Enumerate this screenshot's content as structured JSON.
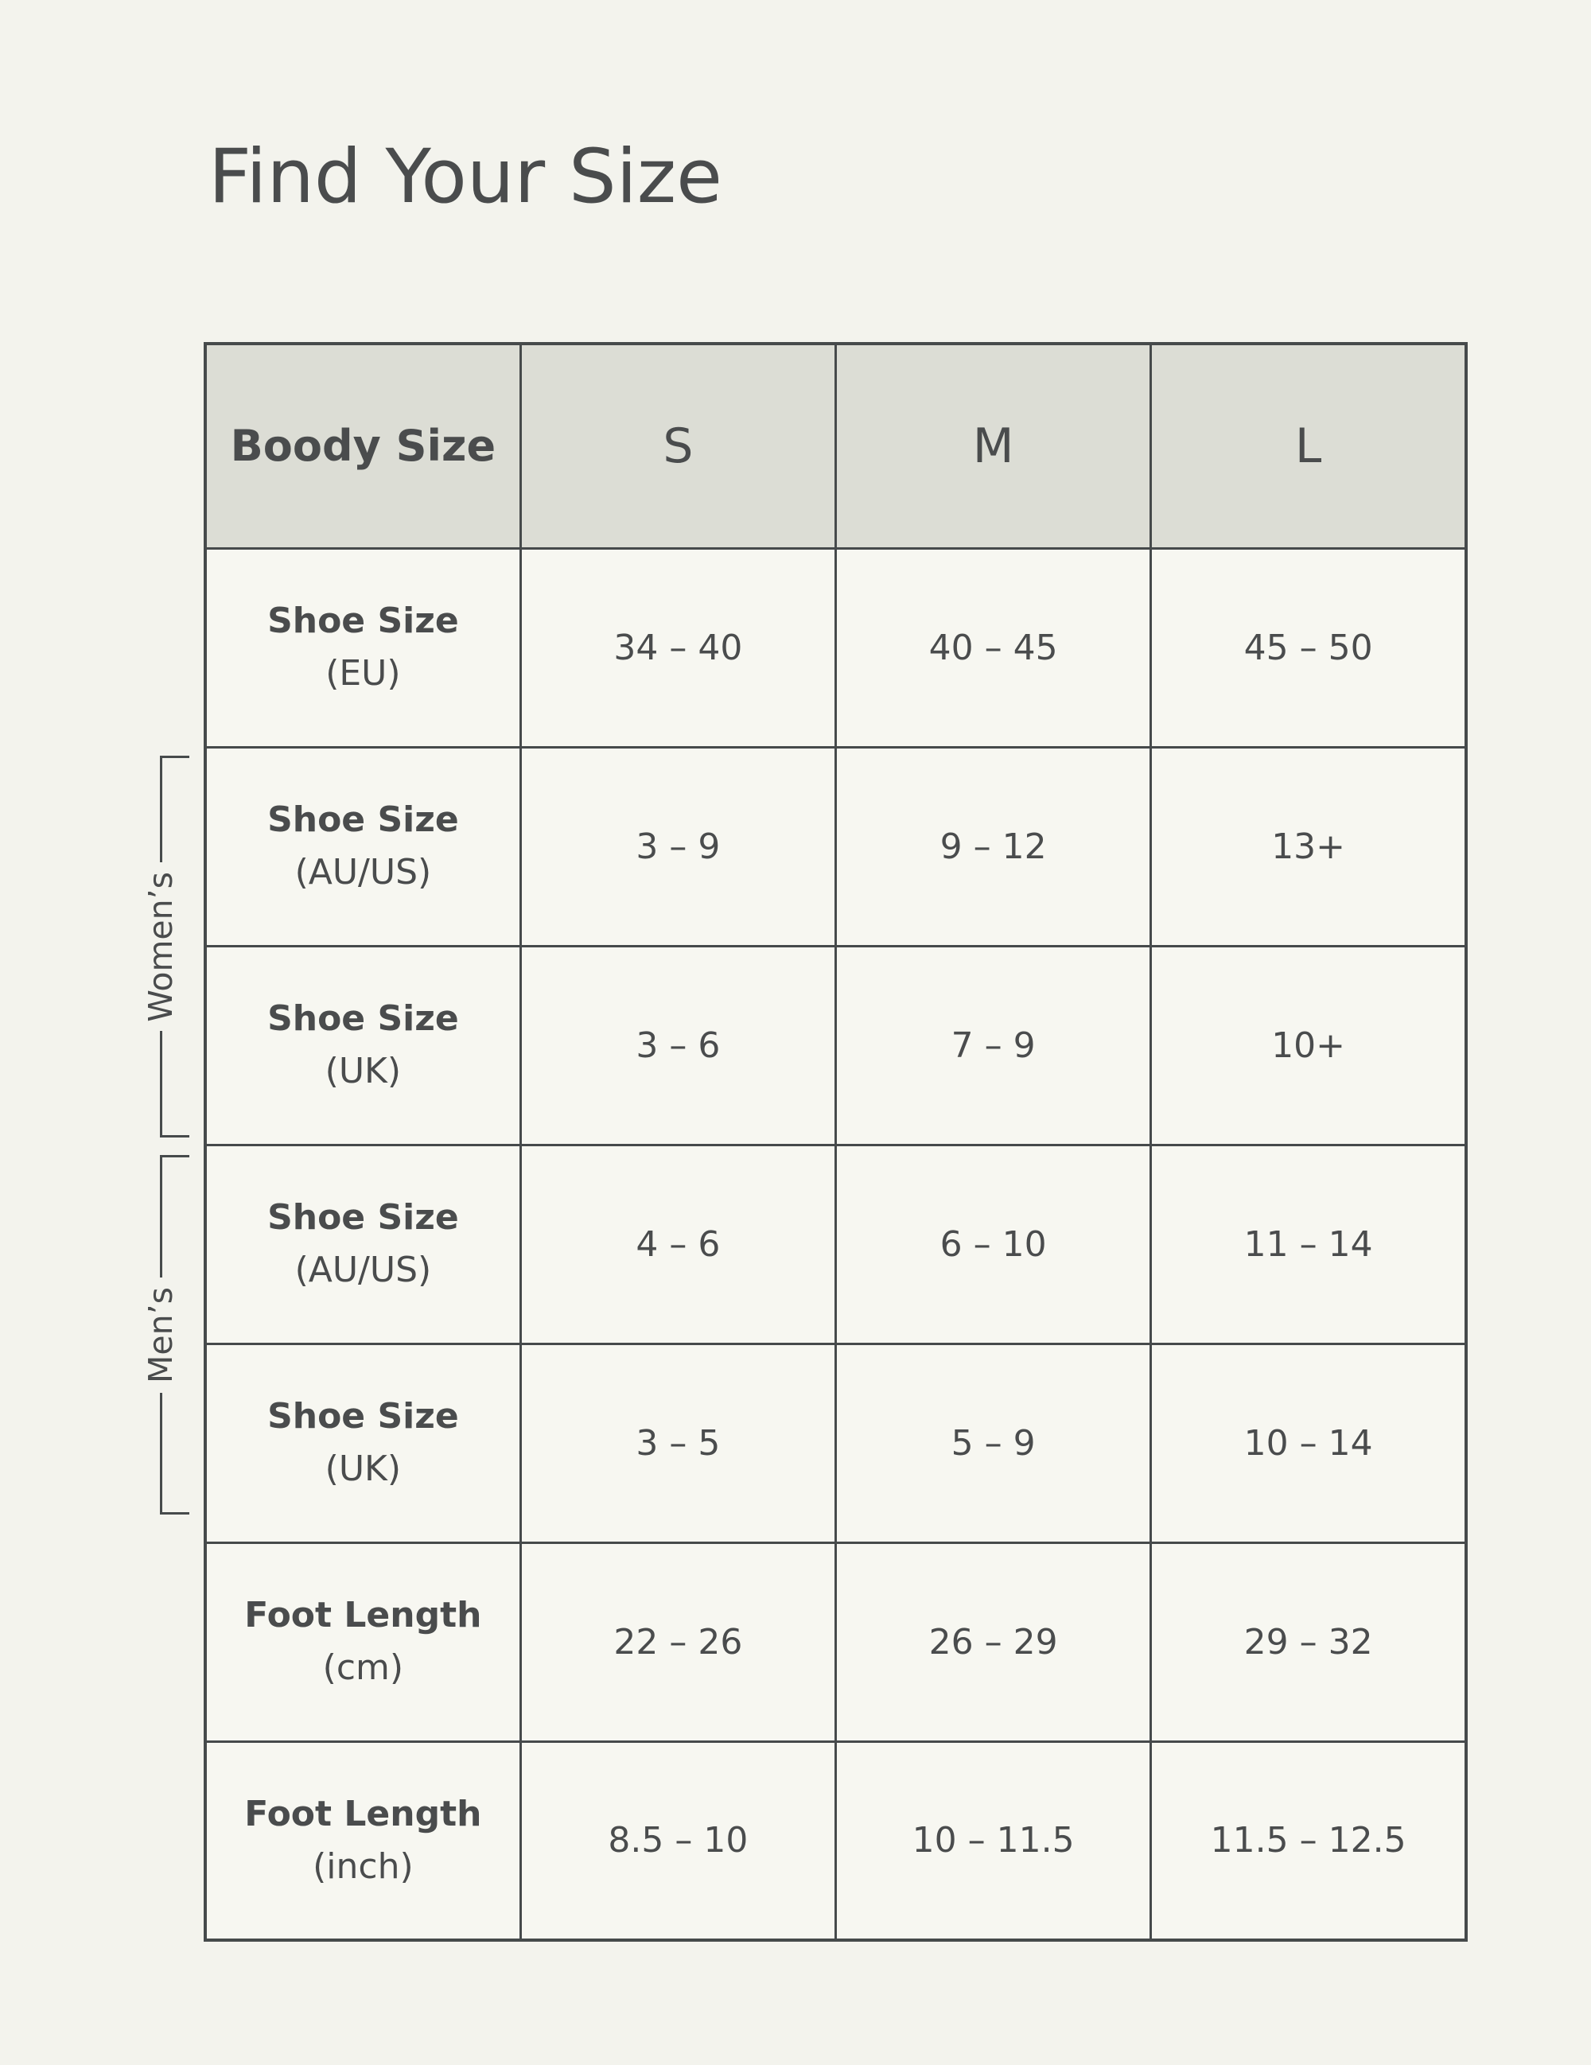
{
  "page": {
    "title": "Find Your Size"
  },
  "table": {
    "header": {
      "label": "Boody Size",
      "sizes": [
        "S",
        "M",
        "L"
      ]
    },
    "rows": [
      {
        "label": "Shoe Size",
        "sublabel": "(EU)",
        "values": [
          "34 – 40",
          "40 – 45",
          "45 – 50"
        ]
      },
      {
        "label": "Shoe Size",
        "sublabel": "(AU/US)",
        "values": [
          "3 – 9",
          "9 – 12",
          "13+"
        ]
      },
      {
        "label": "Shoe Size",
        "sublabel": "(UK)",
        "values": [
          "3 – 6",
          "7 – 9",
          "10+"
        ]
      },
      {
        "label": "Shoe Size",
        "sublabel": "(AU/US)",
        "values": [
          "4 – 6",
          "6 – 10",
          "11 – 14"
        ]
      },
      {
        "label": "Shoe Size",
        "sublabel": "(UK)",
        "values": [
          "3 – 5",
          "5 – 9",
          "10 – 14"
        ]
      },
      {
        "label": "Foot Length",
        "sublabel": "(cm)",
        "values": [
          "22 – 26",
          "26 – 29",
          "29 – 32"
        ]
      },
      {
        "label": "Foot Length",
        "sublabel": "(inch)",
        "values": [
          "8.5 – 10",
          "10 – 11.5",
          "11.5 – 12.5"
        ]
      }
    ],
    "groups": [
      {
        "label": "Women’s"
      },
      {
        "label": "Men’s"
      }
    ]
  },
  "colors": {
    "background": "#f3f3ed",
    "cell": "#f7f7f1",
    "header_cell": "#dcddd5",
    "border": "#464a4b",
    "text": "#4a4c4d"
  }
}
